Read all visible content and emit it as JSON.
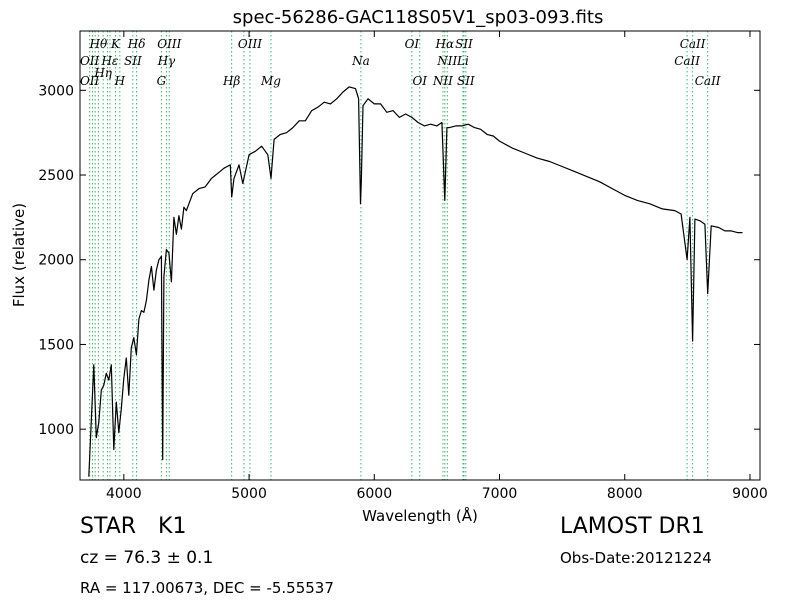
{
  "chart_data": {
    "type": "line",
    "title": "spec-56286-GAC118S05V1_sp03-093.fits",
    "xlabel": "Wavelength (Å)",
    "ylabel": "Flux (relative)",
    "xlim": [
      3650,
      9080
    ],
    "ylim": [
      700,
      3350
    ],
    "xticks": [
      4000,
      5000,
      6000,
      7000,
      8000,
      9000
    ],
    "yticks": [
      1000,
      1500,
      2000,
      2500,
      3000
    ],
    "grid": false,
    "series_color": "#000000",
    "line_marker_color": "#3cb371",
    "series": [
      {
        "x": [
          3720,
          3740,
          3760,
          3780,
          3800,
          3820,
          3840,
          3860,
          3880,
          3900,
          3920,
          3940,
          3960,
          3980,
          4000,
          4020,
          4040,
          4060,
          4080,
          4100,
          4120,
          4140,
          4160,
          4180,
          4200,
          4220,
          4240,
          4260,
          4280,
          4300,
          4310,
          4320,
          4340,
          4360,
          4380,
          4400,
          4420,
          4440,
          4460,
          4480,
          4500,
          4550,
          4600,
          4650,
          4700,
          4750,
          4800,
          4850,
          4861,
          4880,
          4920,
          4950,
          5000,
          5050,
          5100,
          5150,
          5175,
          5200,
          5250,
          5300,
          5350,
          5400,
          5450,
          5500,
          5550,
          5600,
          5650,
          5700,
          5750,
          5800,
          5850,
          5875,
          5890,
          5896,
          5910,
          5950,
          6000,
          6050,
          6100,
          6150,
          6200,
          6250,
          6300,
          6350,
          6400,
          6450,
          6500,
          6540,
          6563,
          6580,
          6600,
          6650,
          6700,
          6750,
          6800,
          6850,
          6900,
          6950,
          7000,
          7100,
          7200,
          7300,
          7400,
          7500,
          7600,
          7700,
          7800,
          7900,
          8000,
          8100,
          8200,
          8300,
          8400,
          8450,
          8498,
          8520,
          8542,
          8560,
          8600,
          8640,
          8662,
          8690,
          8750,
          8800,
          8850,
          8900,
          8940
        ],
        "values": [
          720,
          1050,
          1380,
          950,
          1040,
          1230,
          1260,
          1330,
          1290,
          1380,
          880,
          1160,
          980,
          1120,
          1300,
          1420,
          1200,
          1480,
          1540,
          1440,
          1650,
          1700,
          1690,
          1760,
          1880,
          1960,
          1820,
          1940,
          2000,
          2020,
          820,
          1900,
          2060,
          2040,
          1870,
          2250,
          2150,
          2260,
          2180,
          2310,
          2290,
          2390,
          2420,
          2430,
          2480,
          2510,
          2540,
          2560,
          2370,
          2480,
          2560,
          2450,
          2620,
          2640,
          2670,
          2620,
          2480,
          2710,
          2740,
          2750,
          2780,
          2820,
          2820,
          2880,
          2900,
          2930,
          2920,
          2950,
          2990,
          3020,
          3010,
          2950,
          2330,
          2460,
          2910,
          2950,
          2920,
          2920,
          2870,
          2880,
          2840,
          2860,
          2840,
          2810,
          2790,
          2800,
          2790,
          2810,
          2350,
          2780,
          2780,
          2790,
          2790,
          2800,
          2780,
          2770,
          2740,
          2730,
          2700,
          2660,
          2630,
          2600,
          2580,
          2550,
          2520,
          2490,
          2460,
          2420,
          2380,
          2350,
          2330,
          2300,
          2290,
          2270,
          2000,
          2250,
          1520,
          2240,
          2230,
          2210,
          1800,
          2200,
          2190,
          2170,
          2170,
          2160,
          2160
        ]
      }
    ],
    "line_labels": [
      {
        "text": "Hθ",
        "row": 0,
        "wl": 3797
      },
      {
        "text": "K",
        "row": 0,
        "wl": 3933
      },
      {
        "text": "Hδ",
        "row": 0,
        "wl": 4102
      },
      {
        "text": "OIII",
        "row": 0,
        "wl": 4363
      },
      {
        "text": "OIII",
        "row": 0,
        "wl": 5007
      },
      {
        "text": "OI",
        "row": 0,
        "wl": 6300
      },
      {
        "text": "Hα",
        "row": 0,
        "wl": 6563
      },
      {
        "text": "SII",
        "row": 0,
        "wl": 6716
      },
      {
        "text": "CaII",
        "row": 0,
        "wl": 8542
      },
      {
        "text": "OII",
        "row": 1,
        "wl": 3727
      },
      {
        "text": "Hε",
        "row": 1,
        "wl": 3889
      },
      {
        "text": "SII",
        "row": 1,
        "wl": 4072
      },
      {
        "text": "Hγ",
        "row": 1,
        "wl": 4340
      },
      {
        "text": "Na",
        "row": 1,
        "wl": 5893
      },
      {
        "text": "NII",
        "row": 1,
        "wl": 6583
      },
      {
        "text": "Li",
        "row": 1,
        "wl": 6708
      },
      {
        "text": "CaII",
        "row": 1,
        "wl": 8498
      },
      {
        "text": "Hη",
        "row": 1.6,
        "wl": 3835
      },
      {
        "text": "OII",
        "row": 2,
        "wl": 3727
      },
      {
        "text": "H",
        "row": 2,
        "wl": 3968
      },
      {
        "text": "G",
        "row": 2,
        "wl": 4300
      },
      {
        "text": "Hβ",
        "row": 2,
        "wl": 4861
      },
      {
        "text": "Mg",
        "row": 2,
        "wl": 5175
      },
      {
        "text": "OI",
        "row": 2,
        "wl": 6363
      },
      {
        "text": "NII",
        "row": 2,
        "wl": 6548
      },
      {
        "text": "SII",
        "row": 2,
        "wl": 6731
      },
      {
        "text": "CaII",
        "row": 2,
        "wl": 8662
      }
    ],
    "line_markers": [
      3727,
      3750,
      3771,
      3797,
      3835,
      3870,
      3889,
      3933,
      3968,
      4072,
      4102,
      4300,
      4340,
      4363,
      4861,
      4959,
      5007,
      5175,
      5893,
      6300,
      6363,
      6548,
      6563,
      6583,
      6708,
      6716,
      6731,
      8498,
      8542,
      8662
    ]
  },
  "footer": {
    "object_class": "STAR",
    "subclass": "K1",
    "survey": "LAMOST DR1",
    "cz_text": "cz = 76.3 ± 0.1",
    "obs_date": "Obs-Date:20121224",
    "radec": "RA = 117.00673, DEC = -5.55537"
  }
}
